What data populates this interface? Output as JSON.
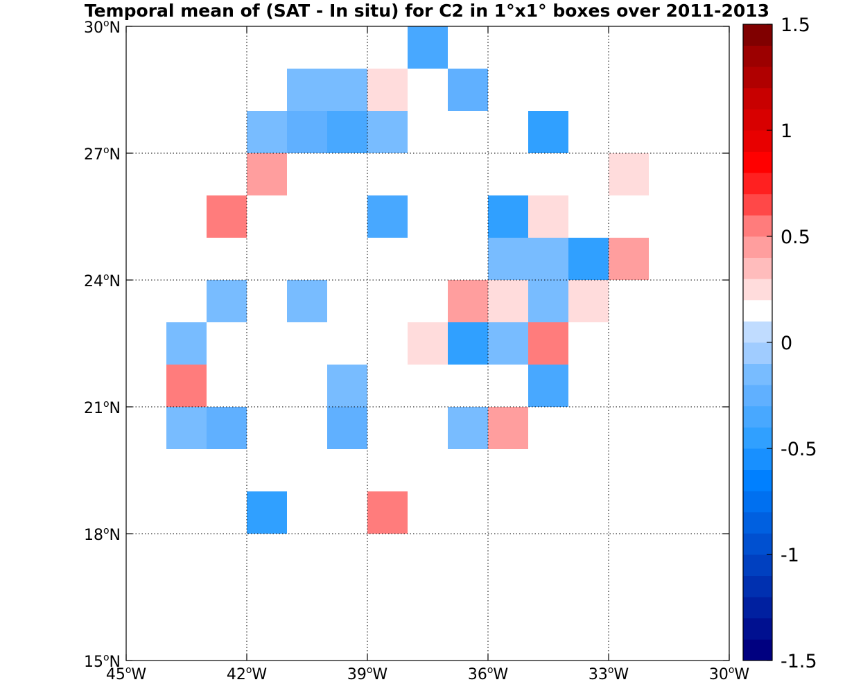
{
  "chart_data": {
    "type": "heatmap",
    "title": "Temporal mean of (SAT - In situ) for C2 in 1°x1° boxes over 2011-2013",
    "xlabel": "",
    "ylabel": "",
    "xlim": [
      -45,
      -30
    ],
    "ylim": [
      15,
      30
    ],
    "grid": true,
    "cell_size_deg": 1,
    "x_ticks": [
      {
        "value": -45,
        "num": "45",
        "deg": "o",
        "hem": "W"
      },
      {
        "value": -42,
        "num": "42",
        "deg": "o",
        "hem": "W"
      },
      {
        "value": -39,
        "num": "39",
        "deg": "o",
        "hem": "W"
      },
      {
        "value": -36,
        "num": "36",
        "deg": "o",
        "hem": "W"
      },
      {
        "value": -33,
        "num": "33",
        "deg": "o",
        "hem": "W"
      },
      {
        "value": -30,
        "num": "30",
        "deg": "o",
        "hem": "W"
      }
    ],
    "y_ticks": [
      {
        "value": 15,
        "num": "15",
        "deg": "o",
        "hem": "N"
      },
      {
        "value": 18,
        "num": "18",
        "deg": "o",
        "hem": "N"
      },
      {
        "value": 21,
        "num": "21",
        "deg": "o",
        "hem": "N"
      },
      {
        "value": 24,
        "num": "24",
        "deg": "o",
        "hem": "N"
      },
      {
        "value": 27,
        "num": "27",
        "deg": "o",
        "hem": "N"
      },
      {
        "value": 30,
        "num": "30",
        "deg": "o",
        "hem": "N"
      }
    ],
    "colorbar": {
      "range": [
        -1.5,
        1.5
      ],
      "n_levels": 30,
      "ticks": [
        {
          "value": 1.5,
          "label": "1.5"
        },
        {
          "value": 1,
          "label": "1"
        },
        {
          "value": 0.5,
          "label": "0.5"
        },
        {
          "value": 0,
          "label": "0"
        },
        {
          "value": -0.5,
          "label": "-0.5"
        },
        {
          "value": -1,
          "label": "-1"
        },
        {
          "value": -1.5,
          "label": "-1.5"
        }
      ],
      "colors": [
        "#000080",
        "#001090",
        "#0020a0",
        "#0030b0",
        "#0040c0",
        "#0050d0",
        "#0060e0",
        "#0070f0",
        "#0080ff",
        "#1890ff",
        "#30a0ff",
        "#48a8ff",
        "#60b0ff",
        "#78bcff",
        "#a0ccff",
        "#c0dcff",
        "#ffffff",
        "#ffdcdc",
        "#ffbcbc",
        "#ff9e9e",
        "#ff7c7c",
        "#ff4848",
        "#ff2020",
        "#ff0000",
        "#e80000",
        "#d80000",
        "#c80000",
        "#b00000",
        "#9c0000",
        "#800000"
      ]
    },
    "cells": [
      {
        "lon": -38,
        "lat": 29,
        "value": -0.35
      },
      {
        "lon": -41,
        "lat": 28,
        "value": -0.15
      },
      {
        "lon": -40,
        "lat": 28,
        "value": -0.15
      },
      {
        "lon": -39,
        "lat": 28,
        "value": 0.25
      },
      {
        "lon": -37,
        "lat": 28,
        "value": -0.25
      },
      {
        "lon": -44,
        "lat": 27,
        "value": 0.15
      },
      {
        "lon": -43,
        "lat": 27,
        "value": 0.15
      },
      {
        "lon": -42,
        "lat": 27,
        "value": -0.15
      },
      {
        "lon": -41,
        "lat": 27,
        "value": -0.25
      },
      {
        "lon": -40,
        "lat": 27,
        "value": -0.35
      },
      {
        "lon": -39,
        "lat": 27,
        "value": -0.15
      },
      {
        "lon": -35,
        "lat": 27,
        "value": -0.45
      },
      {
        "lon": -45,
        "lat": 26,
        "value": 0.15
      },
      {
        "lon": -42,
        "lat": 26,
        "value": 0.4
      },
      {
        "lon": -40,
        "lat": 26,
        "value": 0.15
      },
      {
        "lon": -38,
        "lat": 26,
        "value": 0.15
      },
      {
        "lon": -37,
        "lat": 26,
        "value": 0.15
      },
      {
        "lon": -33,
        "lat": 26,
        "value": 0.25
      },
      {
        "lon": -43,
        "lat": 25,
        "value": 0.55
      },
      {
        "lon": -42,
        "lat": 25,
        "value": 0.15
      },
      {
        "lon": -39,
        "lat": 25,
        "value": -0.35
      },
      {
        "lon": -38,
        "lat": 25,
        "value": 0.15
      },
      {
        "lon": -36,
        "lat": 25,
        "value": -0.45
      },
      {
        "lon": -35,
        "lat": 25,
        "value": 0.25
      },
      {
        "lon": -32,
        "lat": 25,
        "value": 0.15
      },
      {
        "lon": -36,
        "lat": 24,
        "value": -0.15
      },
      {
        "lon": -35,
        "lat": 24,
        "value": -0.15
      },
      {
        "lon": -34,
        "lat": 24,
        "value": -0.45
      },
      {
        "lon": -33,
        "lat": 24,
        "value": 0.4
      },
      {
        "lon": -43,
        "lat": 23,
        "value": -0.15
      },
      {
        "lon": -42,
        "lat": 23,
        "value": 0.15
      },
      {
        "lon": -41,
        "lat": 23,
        "value": -0.15
      },
      {
        "lon": -37,
        "lat": 23,
        "value": 0.4
      },
      {
        "lon": -36,
        "lat": 23,
        "value": 0.25
      },
      {
        "lon": -35,
        "lat": 23,
        "value": -0.15
      },
      {
        "lon": -34,
        "lat": 23,
        "value": 0.25
      },
      {
        "lon": -44,
        "lat": 22,
        "value": -0.15
      },
      {
        "lon": -38,
        "lat": 22,
        "value": 0.25
      },
      {
        "lon": -37,
        "lat": 22,
        "value": -0.5
      },
      {
        "lon": -36,
        "lat": 22,
        "value": -0.15
      },
      {
        "lon": -35,
        "lat": 22,
        "value": 0.55
      },
      {
        "lon": -44,
        "lat": 21,
        "value": 0.55
      },
      {
        "lon": -43,
        "lat": 21,
        "value": 0.15
      },
      {
        "lon": -40,
        "lat": 21,
        "value": -0.15
      },
      {
        "lon": -35,
        "lat": 21,
        "value": -0.35
      },
      {
        "lon": -44,
        "lat": 20,
        "value": -0.15
      },
      {
        "lon": -43,
        "lat": 20,
        "value": -0.25
      },
      {
        "lon": -40,
        "lat": 20,
        "value": -0.25
      },
      {
        "lon": -37,
        "lat": 20,
        "value": -0.15
      },
      {
        "lon": -36,
        "lat": 20,
        "value": 0.4
      },
      {
        "lon": -42,
        "lat": 18,
        "value": -0.45
      },
      {
        "lon": -39,
        "lat": 18,
        "value": 0.55
      }
    ]
  }
}
